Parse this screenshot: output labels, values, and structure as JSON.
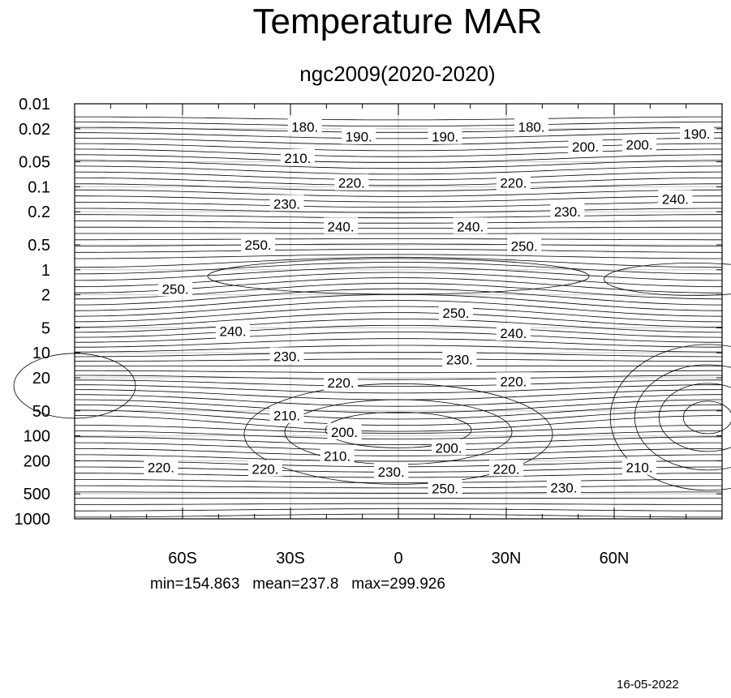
{
  "title": "Temperature MAR",
  "subtitle": "ngc2009(2020-2020)",
  "stats": {
    "min_label": "min=154.863",
    "mean_label": "mean=237.8",
    "max_label": "max=299.926"
  },
  "footer_date": "16-05-2022",
  "chart_data": {
    "type": "contour",
    "title": "Temperature MAR",
    "subtitle": "ngc2009(2020-2020)",
    "x_axis": {
      "range": [
        -90,
        90
      ],
      "ticks": [
        -60,
        -30,
        0,
        30,
        60
      ],
      "tick_labels": [
        "60S",
        "30S",
        "0",
        "30N",
        "60N"
      ]
    },
    "y_axis": {
      "scale": "log",
      "reversed": true,
      "range": [
        0.01,
        1000
      ],
      "ticks": [
        0.01,
        0.02,
        0.05,
        0.1,
        0.2,
        0.5,
        1,
        2,
        5,
        10,
        20,
        50,
        100,
        200,
        500,
        1000
      ],
      "tick_labels": [
        "0.01",
        "0.02",
        "0.05",
        "0.1",
        "0.2",
        "0.5",
        "1",
        "2",
        "5",
        "10",
        "20",
        "50",
        "100",
        "200",
        "500",
        "1000"
      ]
    },
    "grid": true,
    "contour_labels": [
      {
        "text": "180.",
        "lat": -26,
        "p": 0.019
      },
      {
        "text": "190.",
        "lat": -11,
        "p": 0.025
      },
      {
        "text": "190.",
        "lat": 13,
        "p": 0.025
      },
      {
        "text": "180.",
        "lat": 37,
        "p": 0.019
      },
      {
        "text": "200.",
        "lat": 52,
        "p": 0.033
      },
      {
        "text": "200.",
        "lat": 67,
        "p": 0.031
      },
      {
        "text": "190.",
        "lat": 83,
        "p": 0.023
      },
      {
        "text": "210.",
        "lat": -28,
        "p": 0.045
      },
      {
        "text": "220.",
        "lat": -13,
        "p": 0.09
      },
      {
        "text": "220.",
        "lat": 32,
        "p": 0.09
      },
      {
        "text": "230.",
        "lat": -31,
        "p": 0.16
      },
      {
        "text": "230.",
        "lat": 47,
        "p": 0.2
      },
      {
        "text": "240.",
        "lat": 77,
        "p": 0.14
      },
      {
        "text": "240.",
        "lat": -16,
        "p": 0.3
      },
      {
        "text": "240.",
        "lat": 20,
        "p": 0.3
      },
      {
        "text": "250.",
        "lat": -39,
        "p": 0.5
      },
      {
        "text": "250.",
        "lat": 35,
        "p": 0.52
      },
      {
        "text": "250.",
        "lat": -62,
        "p": 1.7
      },
      {
        "text": "250.",
        "lat": 16,
        "p": 3.3
      },
      {
        "text": "240.",
        "lat": -46,
        "p": 5.5
      },
      {
        "text": "240.",
        "lat": 32,
        "p": 5.8
      },
      {
        "text": "230.",
        "lat": -31,
        "p": 11
      },
      {
        "text": "230.",
        "lat": 17,
        "p": 12
      },
      {
        "text": "220.",
        "lat": -16,
        "p": 23
      },
      {
        "text": "220.",
        "lat": 32,
        "p": 22
      },
      {
        "text": "210.",
        "lat": -31,
        "p": 57
      },
      {
        "text": "200.",
        "lat": -15,
        "p": 90
      },
      {
        "text": "210.",
        "lat": -17,
        "p": 175
      },
      {
        "text": "200.",
        "lat": 14,
        "p": 140
      },
      {
        "text": "220.",
        "lat": -66,
        "p": 240
      },
      {
        "text": "220.",
        "lat": -37,
        "p": 250
      },
      {
        "text": "230.",
        "lat": -2,
        "p": 270
      },
      {
        "text": "220.",
        "lat": 30,
        "p": 250
      },
      {
        "text": "230.",
        "lat": 46,
        "p": 420
      },
      {
        "text": "210.",
        "lat": 67,
        "p": 240
      },
      {
        "text": "250.",
        "lat": 13,
        "p": 430
      }
    ]
  }
}
